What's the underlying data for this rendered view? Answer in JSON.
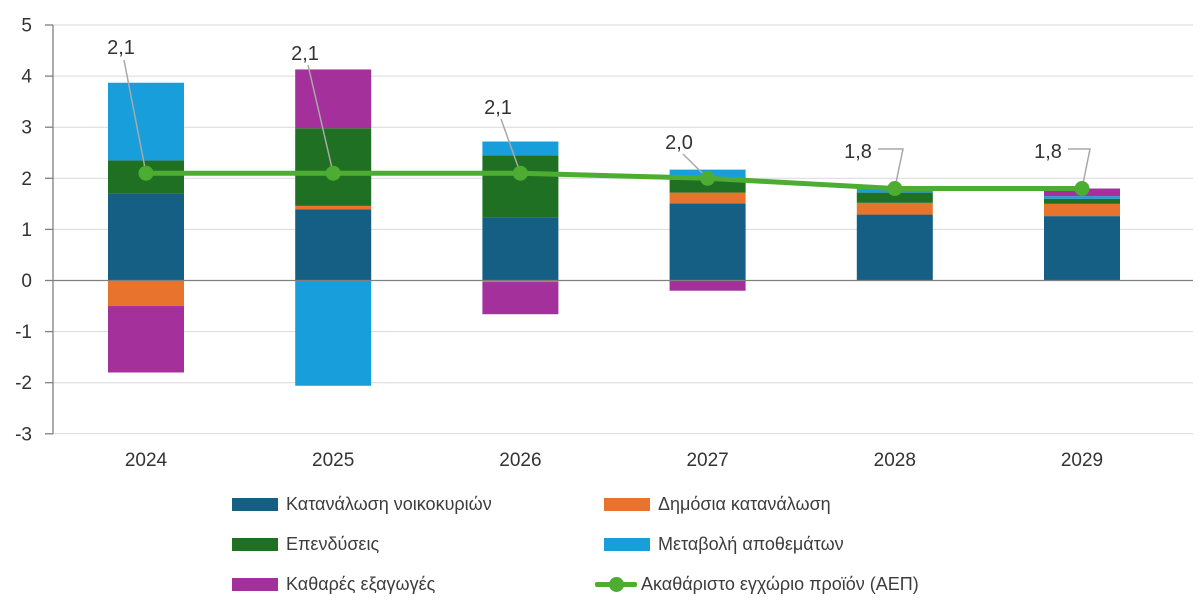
{
  "chart_data": {
    "type": "bar",
    "subtype": "stacked-bar-with-line",
    "title": "",
    "xlabel": "",
    "ylabel": "",
    "categories": [
      "2024",
      "2025",
      "2026",
      "2027",
      "2028",
      "2029"
    ],
    "series": [
      {
        "name": "Κατανάλωση νοικοκυριών",
        "color": "#155F85",
        "values": [
          1.7,
          1.39,
          1.24,
          1.51,
          1.29,
          1.26
        ]
      },
      {
        "name": "Δημόσια κατανάλωση",
        "color": "#E8732C",
        "values": [
          -0.5,
          0.07,
          -0.03,
          0.21,
          0.23,
          0.24
        ]
      },
      {
        "name": "Επενδύσεις",
        "color": "#1F7023",
        "values": [
          0.65,
          1.52,
          1.21,
          0.25,
          0.2,
          0.1
        ]
      },
      {
        "name": "Μεταβολή αποθεμάτων",
        "color": "#189FDB",
        "values": [
          1.52,
          -2.06,
          0.27,
          0.2,
          0.08,
          0.05
        ]
      },
      {
        "name": "Καθαρές εξαγωγές",
        "color": "#A3309B",
        "values": [
          -1.3,
          1.15,
          -0.63,
          -0.2,
          0.0,
          0.15
        ]
      }
    ],
    "line_series": {
      "name": "Ακαθάριστο εγχώριο προϊόν (ΑΕΠ)",
      "color": "#4DAD32",
      "values": [
        2.1,
        2.1,
        2.1,
        2.0,
        1.8,
        1.8
      ],
      "data_labels": [
        "2,1",
        "2,1",
        "2,1",
        "2,0",
        "1,8",
        "1,8"
      ]
    },
    "ylim": [
      -3,
      5
    ],
    "yticks": [
      5,
      4,
      3,
      2,
      1,
      0,
      -1,
      -2,
      -3
    ],
    "grid": true,
    "legend_position": "bottom",
    "colors": {
      "gridline": "#D9D9D9",
      "zero_line": "#7F7F7F",
      "axis_line": "#7F7F7F",
      "tick_text": "#333333",
      "data_label_text": "#333333",
      "leader_line": "#A8A8A8"
    }
  }
}
